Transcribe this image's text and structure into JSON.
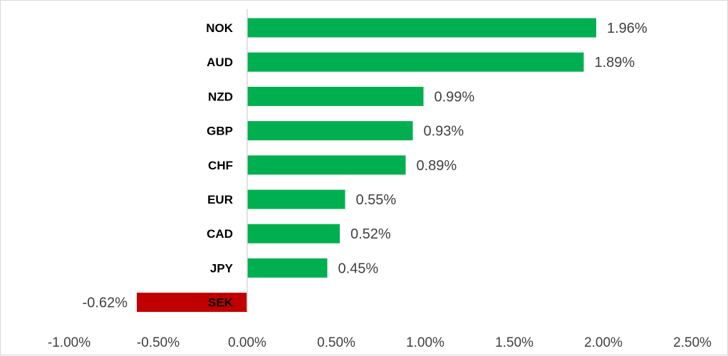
{
  "chart_data": {
    "type": "bar",
    "orientation": "horizontal",
    "categories": [
      "NOK",
      "AUD",
      "NZD",
      "GBP",
      "CHF",
      "EUR",
      "CAD",
      "JPY",
      "SEK"
    ],
    "values": [
      1.96,
      1.89,
      0.99,
      0.93,
      0.89,
      0.55,
      0.52,
      0.45,
      -0.62
    ],
    "data_labels": [
      "1.96%",
      "1.89%",
      "0.99%",
      "0.93%",
      "0.89%",
      "0.55%",
      "0.52%",
      "0.45%",
      "-0.62%"
    ],
    "x_ticks": [
      "-1.00%",
      "-0.50%",
      "0.00%",
      "0.50%",
      "1.00%",
      "1.50%",
      "2.00%",
      "2.50%"
    ],
    "xlim": [
      -1.0,
      2.5
    ],
    "title": "",
    "xlabel": "",
    "ylabel": "",
    "grid": false,
    "colors": {
      "positive": "#00b050",
      "negative": "#c00000",
      "axis": "#d9d9d9"
    }
  }
}
